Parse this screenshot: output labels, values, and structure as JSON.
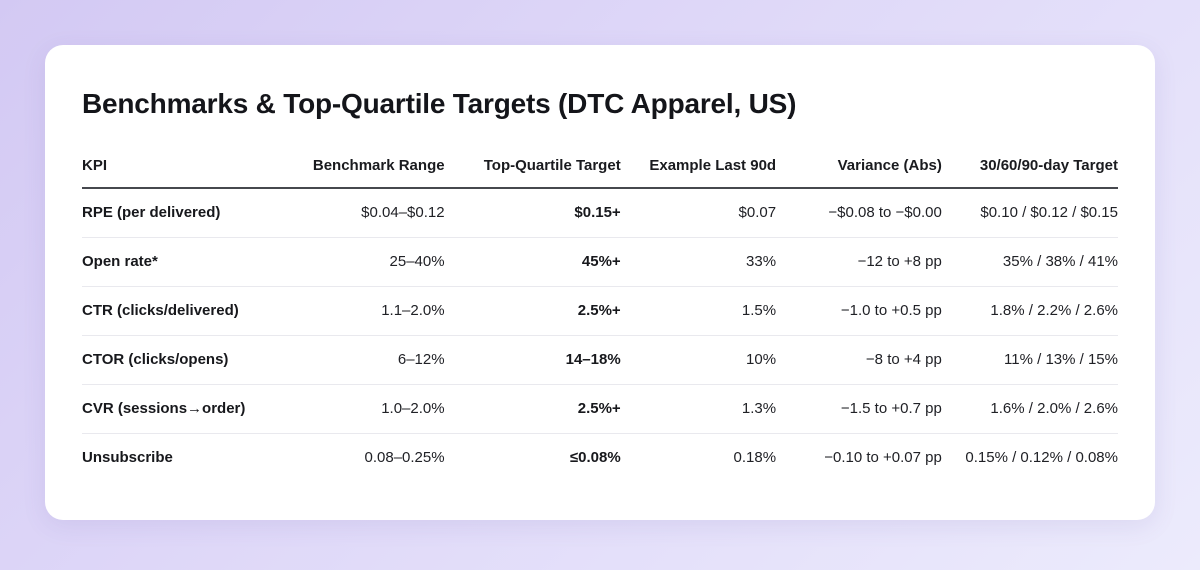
{
  "page": {
    "title": "Benchmarks & Top-Quartile Targets (DTC Apparel, US)"
  },
  "colors": {
    "background_gradient_start": "#d3c9f3",
    "background_gradient_end": "#ecebfc",
    "card_background": "#ffffff",
    "header_rule": "#46484e",
    "row_rule": "#e9e9ee",
    "text_primary": "#17181c"
  },
  "table": {
    "columns": [
      {
        "label": "KPI",
        "align": "left"
      },
      {
        "label": "Benchmark Range",
        "align": "right"
      },
      {
        "label": "Top-Quartile Target",
        "align": "right"
      },
      {
        "label": "Example Last 90d",
        "align": "right"
      },
      {
        "label": "Variance (Abs)",
        "align": "right"
      },
      {
        "label": "30/60/90-day Target",
        "align": "right"
      }
    ],
    "rows": [
      [
        "RPE (per delivered)",
        "$0.04–$0.12",
        "$0.15+",
        "$0.07",
        "−$0.08 to −$0.00",
        "$0.10 / $0.12 / $0.15"
      ],
      [
        "Open rate*",
        "25–40%",
        "45%+",
        "33%",
        "−12 to +8 pp",
        "35% / 38% / 41%"
      ],
      [
        "CTR (clicks/delivered)",
        "1.1–2.0%",
        "2.5%+",
        "1.5%",
        "−1.0 to +0.5 pp",
        "1.8% / 2.2% / 2.6%"
      ],
      [
        "CTOR (clicks/opens)",
        "6–12%",
        "14–18%",
        "10%",
        "−8 to +4 pp",
        "11% / 13% / 15%"
      ],
      [
        "CVR (sessions→order)",
        "1.0–2.0%",
        "2.5%+",
        "1.3%",
        "−1.5 to +0.7 pp",
        "1.6% / 2.0% / 2.6%"
      ],
      [
        "Unsubscribe",
        "0.08–0.25%",
        "≤0.08%",
        "0.18%",
        "−0.10 to +0.07 pp",
        "0.15% / 0.12% / 0.08%"
      ]
    ]
  }
}
